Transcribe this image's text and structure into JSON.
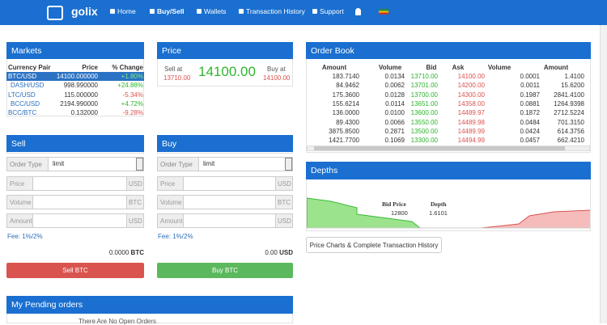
{
  "navbar": {
    "logo": "golix",
    "items": [
      "Home",
      "Buy/Sell",
      "Wallets",
      "Transaction History",
      "Support"
    ]
  },
  "markets": {
    "title": "Markets",
    "columns": [
      "Currency Pair",
      "Price",
      "% Change"
    ],
    "rows": [
      [
        "BTC/USD",
        "14100.000000",
        "+1.80%"
      ],
      [
        "DASH/USD",
        "998.990000",
        "+24.88%"
      ],
      [
        "LTC/USD",
        "115.000000",
        "-5.34%"
      ],
      [
        "BCC/USD",
        "2194.990000",
        "+4.72%"
      ],
      [
        "BCC/BTC",
        "0.132000",
        "-9.28%"
      ]
    ]
  },
  "price": {
    "title": "Price",
    "sell_label": "Sell at",
    "sell_value": "13710.00",
    "current": "14100.00",
    "buy_label": "Buy at",
    "buy_value": "14100.00"
  },
  "order_book": {
    "title": "Order Book",
    "columns": [
      "Amount",
      "Volume",
      "Bid",
      "Ask",
      "Volume",
      "Amount"
    ],
    "rows": [
      [
        "183.7140",
        "0.0134",
        "13710.00",
        "14100.00",
        "0.0001",
        "1.4100"
      ],
      [
        "84.9462",
        "0.0062",
        "13701.00",
        "14200.00",
        "0.0011",
        "15.6200"
      ],
      [
        "175.3600",
        "0.0128",
        "13700.00",
        "14300.00",
        "0.1987",
        "2841.4100"
      ],
      [
        "155.6214",
        "0.0114",
        "13651.00",
        "14358.00",
        "0.0881",
        "1264.9398"
      ],
      [
        "136.0000",
        "0.0100",
        "13600.00",
        "14489.97",
        "0.1872",
        "2712.5224"
      ],
      [
        "89.4300",
        "0.0066",
        "13550.00",
        "14489.98",
        "0.0484",
        "701.3150"
      ],
      [
        "3875.8500",
        "0.2871",
        "13500.00",
        "14489.99",
        "0.0424",
        "614.3756"
      ],
      [
        "1421.7700",
        "0.1069",
        "13300.00",
        "14494.99",
        "0.0457",
        "662.4210"
      ]
    ]
  },
  "sell": {
    "title": "Sell",
    "order_type_label": "Order Type",
    "order_type": "limit",
    "fields": [
      [
        "Price",
        "USD"
      ],
      [
        "Volume",
        "BTC"
      ],
      [
        "Amount",
        "USD"
      ]
    ],
    "fee": "Fee: 1%/2%",
    "balance": "0.0000",
    "balance_unit": "BTC",
    "button": "Sell BTC"
  },
  "buy": {
    "title": "Buy",
    "order_type_label": "Order Type",
    "order_type": "limit",
    "fields": [
      [
        "Price",
        "USD"
      ],
      [
        "Volume",
        "BTC"
      ],
      [
        "Amount",
        "USD"
      ]
    ],
    "fee": "Fee: 1%/2%",
    "balance": "0.00",
    "balance_unit": "USD",
    "button": "Buy BTC"
  },
  "depths": {
    "title": "Depths",
    "tooltip_headers": [
      "Bid Price",
      "Depth"
    ],
    "tooltip_values": [
      "12800",
      "1.6101"
    ]
  },
  "history_button": "Price Charts & Complete Transaction History",
  "pending": {
    "title": "My Pending orders",
    "empty": "There Are No Open Orders"
  }
}
